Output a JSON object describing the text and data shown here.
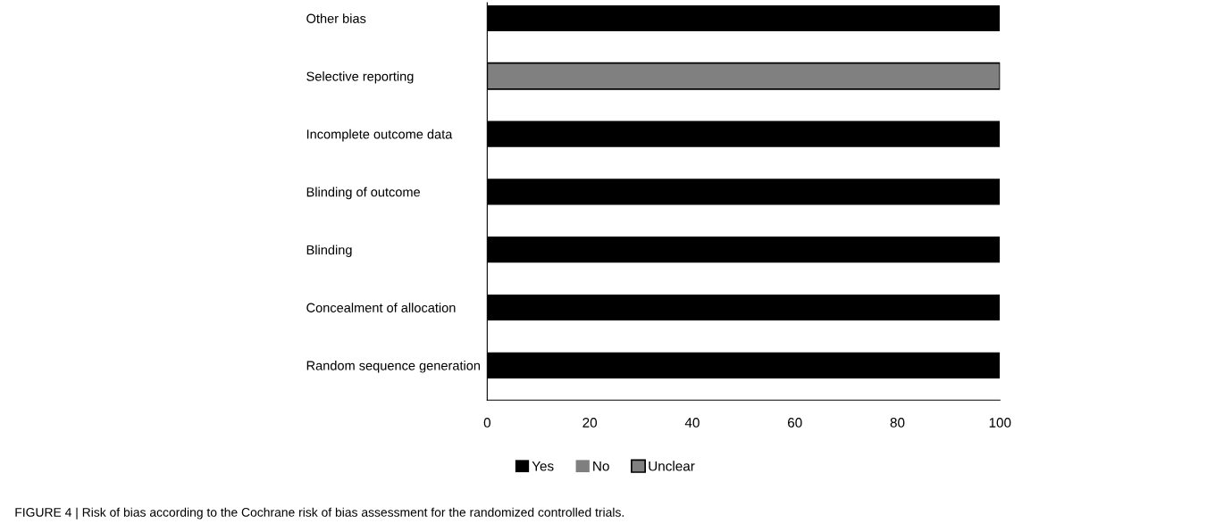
{
  "chart_data": {
    "type": "bar",
    "orientation": "horizontal",
    "stacked": true,
    "categories": [
      "Other bias",
      "Selective reporting",
      "Incomplete outcome data",
      "Blinding of outcome",
      "Blinding",
      "Concealment of allocation",
      "Random sequence generation"
    ],
    "series": [
      {
        "name": "Yes",
        "color": "#000000",
        "values": [
          100,
          0,
          100,
          100,
          100,
          100,
          100
        ]
      },
      {
        "name": "No",
        "color": "#7f7f7f",
        "values": [
          0,
          0,
          0,
          0,
          0,
          0,
          0
        ]
      },
      {
        "name": "Unclear",
        "color": "#808080",
        "values": [
          0,
          100,
          0,
          0,
          0,
          0,
          0
        ]
      }
    ],
    "xlim": [
      0,
      100
    ],
    "xticks": [
      0,
      20,
      40,
      60,
      80,
      100
    ],
    "grid": false,
    "legend": "bottom",
    "annotations": [
      "FIGURE 4 | Risk of bias according to the Cochrane risk of bias assessment for the randomized controlled trials."
    ]
  }
}
